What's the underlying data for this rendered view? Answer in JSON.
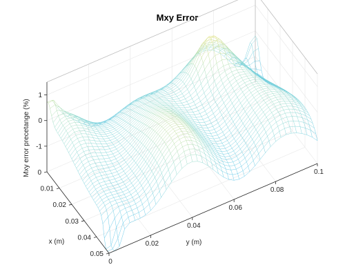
{
  "chart_data": {
    "type": "surface",
    "title": "Mxy Error",
    "xlabel": "x (m)",
    "ylabel": "y (m)",
    "zlabel": "Mxy error precetange (%)",
    "xlim": [
      0,
      0.05
    ],
    "ylim": [
      0,
      0.1
    ],
    "zlim": [
      -2,
      1.5
    ],
    "x_ticks": [
      "0",
      "0.01",
      "0.02",
      "0.03",
      "0.04",
      "0.05"
    ],
    "y_ticks": [
      "0",
      "0.02",
      "0.04",
      "0.06",
      "0.08",
      "0.1"
    ],
    "z_ticks": [
      "-1",
      "0",
      "1"
    ],
    "grid": true,
    "colormap": "parula",
    "mesh_resolution": [
      41,
      41
    ],
    "colors": {
      "low": "#6ec8e6",
      "mid": "#8fd9cf",
      "high": "#d9e67a"
    }
  }
}
